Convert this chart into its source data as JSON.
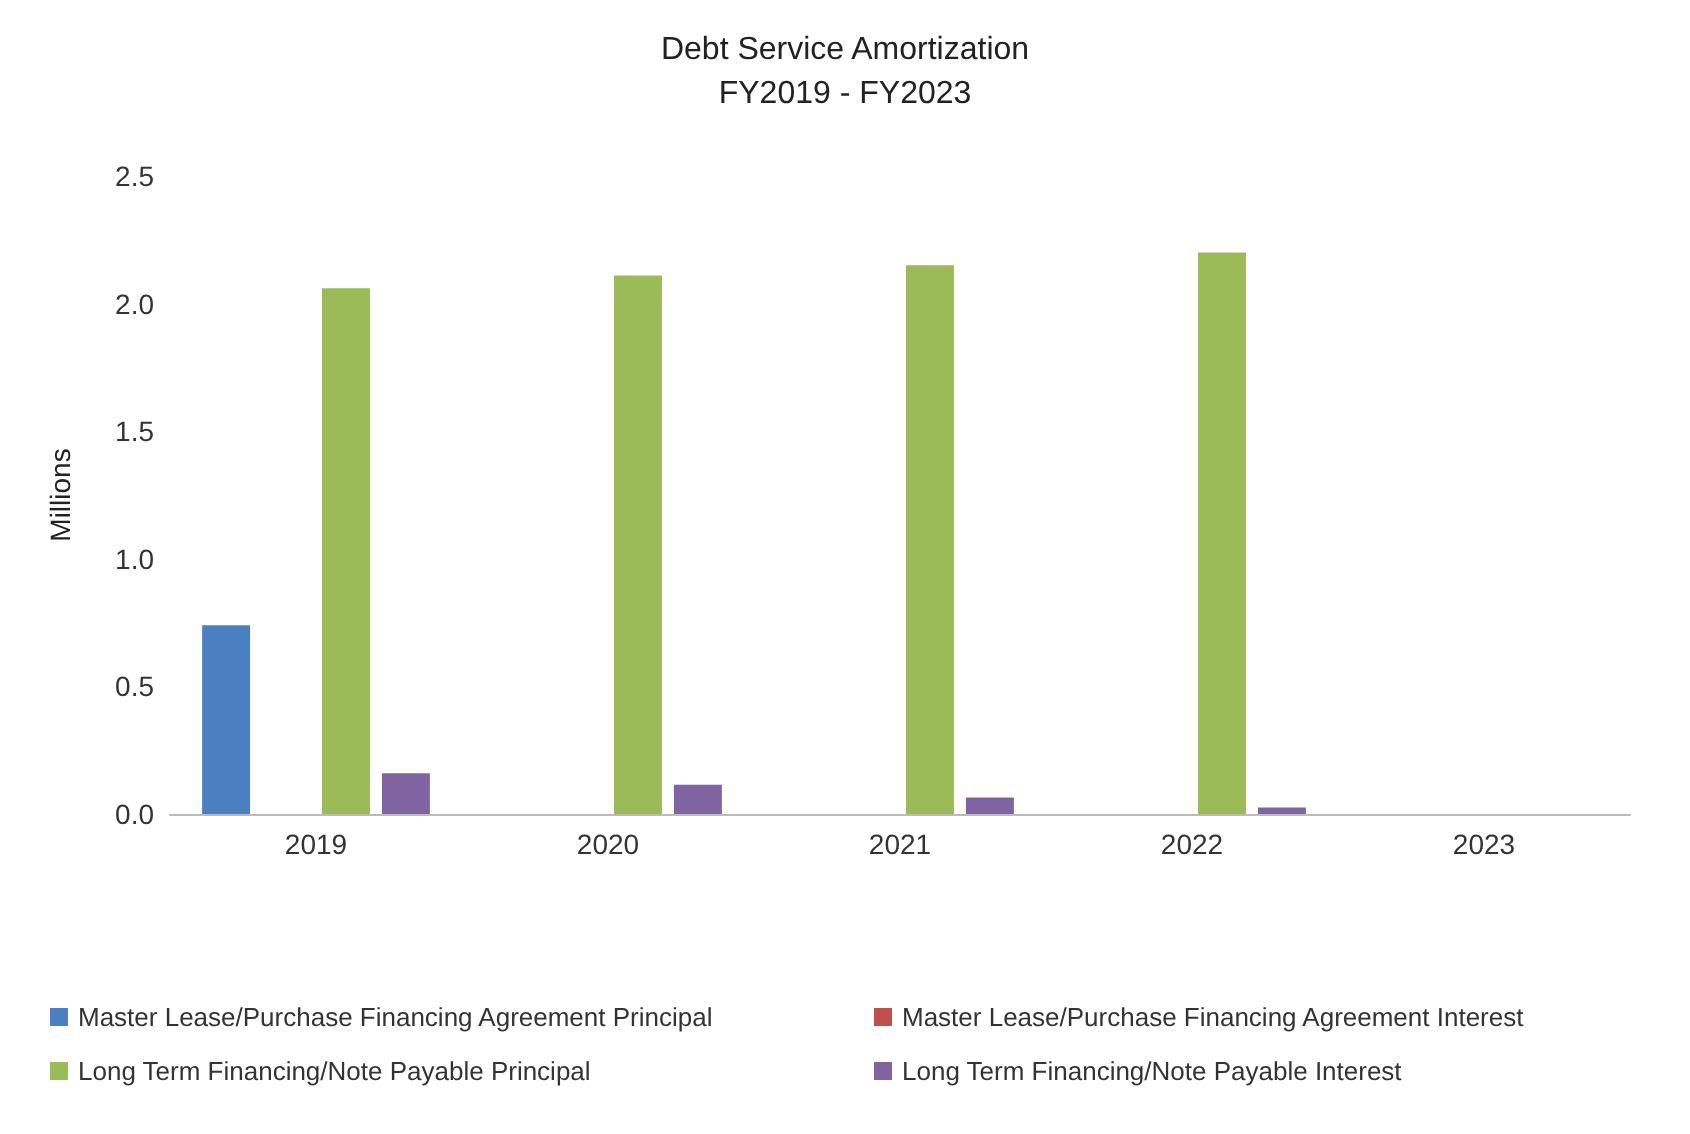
{
  "chart_data": {
    "type": "bar",
    "title": "Debt Service Amortization",
    "subtitle": "FY2019 - FY2023",
    "ylabel": "Millions",
    "categories": [
      "2019",
      "2020",
      "2021",
      "2022",
      "2023"
    ],
    "series": [
      {
        "name": "Master Lease/Purchase Financing Agreement Principal",
        "color": "#4a7fc1",
        "values": [
          0.74,
          0,
          0,
          0,
          0
        ]
      },
      {
        "name": "Master Lease/Purchase Financing Agreement Interest",
        "color": "#c0504d",
        "values": [
          0,
          0,
          0,
          0,
          0
        ]
      },
      {
        "name": "Long Term Financing/Note Payable Principal",
        "color": "#9bbb59",
        "values": [
          2.06,
          2.11,
          2.15,
          2.2,
          0
        ]
      },
      {
        "name": "Long Term Financing/Note Payable Interest",
        "color": "#8064a2",
        "values": [
          0.16,
          0.115,
          0.065,
          0.025,
          0
        ]
      }
    ],
    "ylim": [
      0,
      2.5
    ],
    "yticks": [
      {
        "value": 0,
        "label": "0.0"
      },
      {
        "value": 0.5,
        "label": "0.5"
      },
      {
        "value": 1,
        "label": "1.0"
      },
      {
        "value": 1.5,
        "label": "1.5"
      },
      {
        "value": 2,
        "label": "2.0"
      },
      {
        "value": 2.5,
        "label": "2.5"
      }
    ],
    "legend": "bottom"
  }
}
